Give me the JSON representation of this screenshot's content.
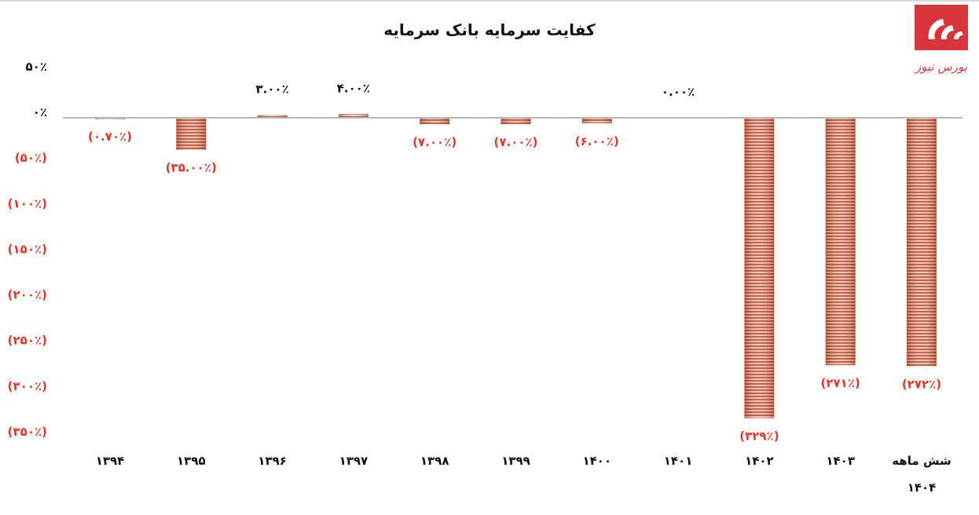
{
  "chart_data": {
    "type": "bar",
    "title": "کفایت سرمایه بانک سرمایه",
    "categories": [
      "۱۳۹۴",
      "۱۳۹۵",
      "۱۳۹۶",
      "۱۳۹۷",
      "۱۳۹۸",
      "۱۳۹۹",
      "۱۴۰۰",
      "۱۴۰۱",
      "۱۴۰۲",
      "۱۴۰۳",
      "شش ماهه\n۱۴۰۴"
    ],
    "values": [
      -0.7,
      -35.0,
      3.0,
      4.0,
      -7.0,
      -7.0,
      -6.0,
      0.0,
      -329,
      -271,
      -272
    ],
    "data_labels": [
      "(۰.۷۰٪)",
      "(۳۵.۰۰٪)",
      "۳.۰۰٪",
      "۴.۰۰٪",
      "(۷.۰۰٪)",
      "(۷.۰۰٪)",
      "(۶.۰۰٪)",
      "۰.۰۰٪",
      "(۳۲۹٪)",
      "(۲۷۱٪)",
      "(۲۷۲٪)"
    ],
    "ylim": [
      -350,
      50
    ],
    "y_ticks": [
      50,
      0,
      -50,
      -100,
      -150,
      -200,
      -250,
      -300,
      -350
    ],
    "y_tick_labels": [
      "۵۰٪",
      "۰٪",
      "(۵۰٪)",
      "(۱۰۰٪)",
      "(۱۵۰٪)",
      "(۲۰۰٪)",
      "(۲۵۰٪)",
      "(۳۰۰٪)",
      "(۳۵۰٪)"
    ],
    "grid": false,
    "xlabel": "",
    "ylabel": "",
    "colors": {
      "bar": "#c0553a",
      "negative_label": "#e0332a",
      "positive_label": "#111111",
      "axis": "#b8b8b8"
    }
  },
  "logo": {
    "text": "بورس نیوز",
    "color": "#d8353a"
  }
}
